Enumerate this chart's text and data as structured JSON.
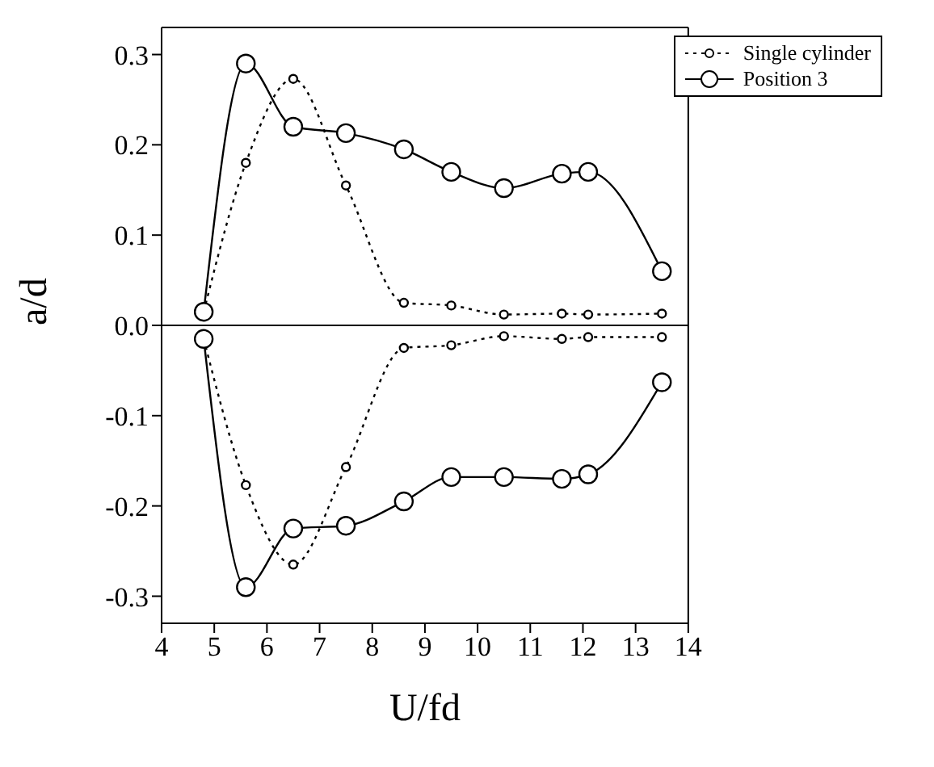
{
  "chart_data": {
    "type": "line",
    "xlabel": "U/fd",
    "ylabel": "a/d",
    "xlim": [
      4,
      14
    ],
    "xticks": [
      4,
      5,
      6,
      7,
      8,
      9,
      10,
      11,
      12,
      13,
      14
    ],
    "ylim": [
      -0.33,
      0.33
    ],
    "yticks": [
      {
        "value": -0.3,
        "label": "-0.3"
      },
      {
        "value": -0.2,
        "label": "-0.2"
      },
      {
        "value": -0.1,
        "label": "-0.1"
      },
      {
        "value": 0,
        "label": "0.0"
      },
      {
        "value": 0.1,
        "label": "0.1"
      },
      {
        "value": 0.2,
        "label": "0.2"
      },
      {
        "value": 0.3,
        "label": "0.3"
      }
    ],
    "grid": false,
    "legend": "top right",
    "ref_lines": [
      {
        "axis": "y",
        "value": 0,
        "color": "#000000",
        "line_style": "solid"
      }
    ],
    "series": [
      {
        "name": "Single cylinder",
        "color": "#000000",
        "line_style": "dotted",
        "marker": "circle",
        "x": [
          4.8,
          5.6,
          6.5,
          7.5,
          8.6,
          9.5,
          10.5,
          11.6,
          12.1,
          13.5
        ],
        "values": [
          0.015,
          0.18,
          0.273,
          0.155,
          0.025,
          0.022,
          0.012,
          0.013,
          0.012,
          0.013
        ]
      },
      {
        "name": "Position 3",
        "color": "#000000",
        "line_style": "solid",
        "marker": "circle",
        "x": [
          4.8,
          5.6,
          6.5,
          7.5,
          8.6,
          9.5,
          10.5,
          11.6,
          12.1,
          13.5
        ],
        "values": [
          0.015,
          0.29,
          0.22,
          0.213,
          0.195,
          0.17,
          0.152,
          0.168,
          0.17,
          0.06
        ]
      },
      {
        "color": "#000000",
        "line_style": "dotted",
        "marker": "circle",
        "x": [
          4.8,
          5.6,
          6.5,
          7.5,
          8.6,
          9.5,
          10.5,
          11.6,
          12.1,
          13.5
        ],
        "values": [
          -0.015,
          -0.177,
          -0.265,
          -0.157,
          -0.025,
          -0.022,
          -0.012,
          -0.015,
          -0.013,
          -0.013
        ]
      },
      {
        "color": "#000000",
        "line_style": "solid",
        "marker": "circle",
        "x": [
          4.8,
          5.6,
          6.5,
          7.5,
          8.6,
          9.5,
          10.5,
          11.6,
          12.1,
          13.5
        ],
        "values": [
          -0.015,
          -0.29,
          -0.225,
          -0.222,
          -0.195,
          -0.168,
          -0.168,
          -0.17,
          -0.165,
          -0.063
        ]
      }
    ]
  }
}
